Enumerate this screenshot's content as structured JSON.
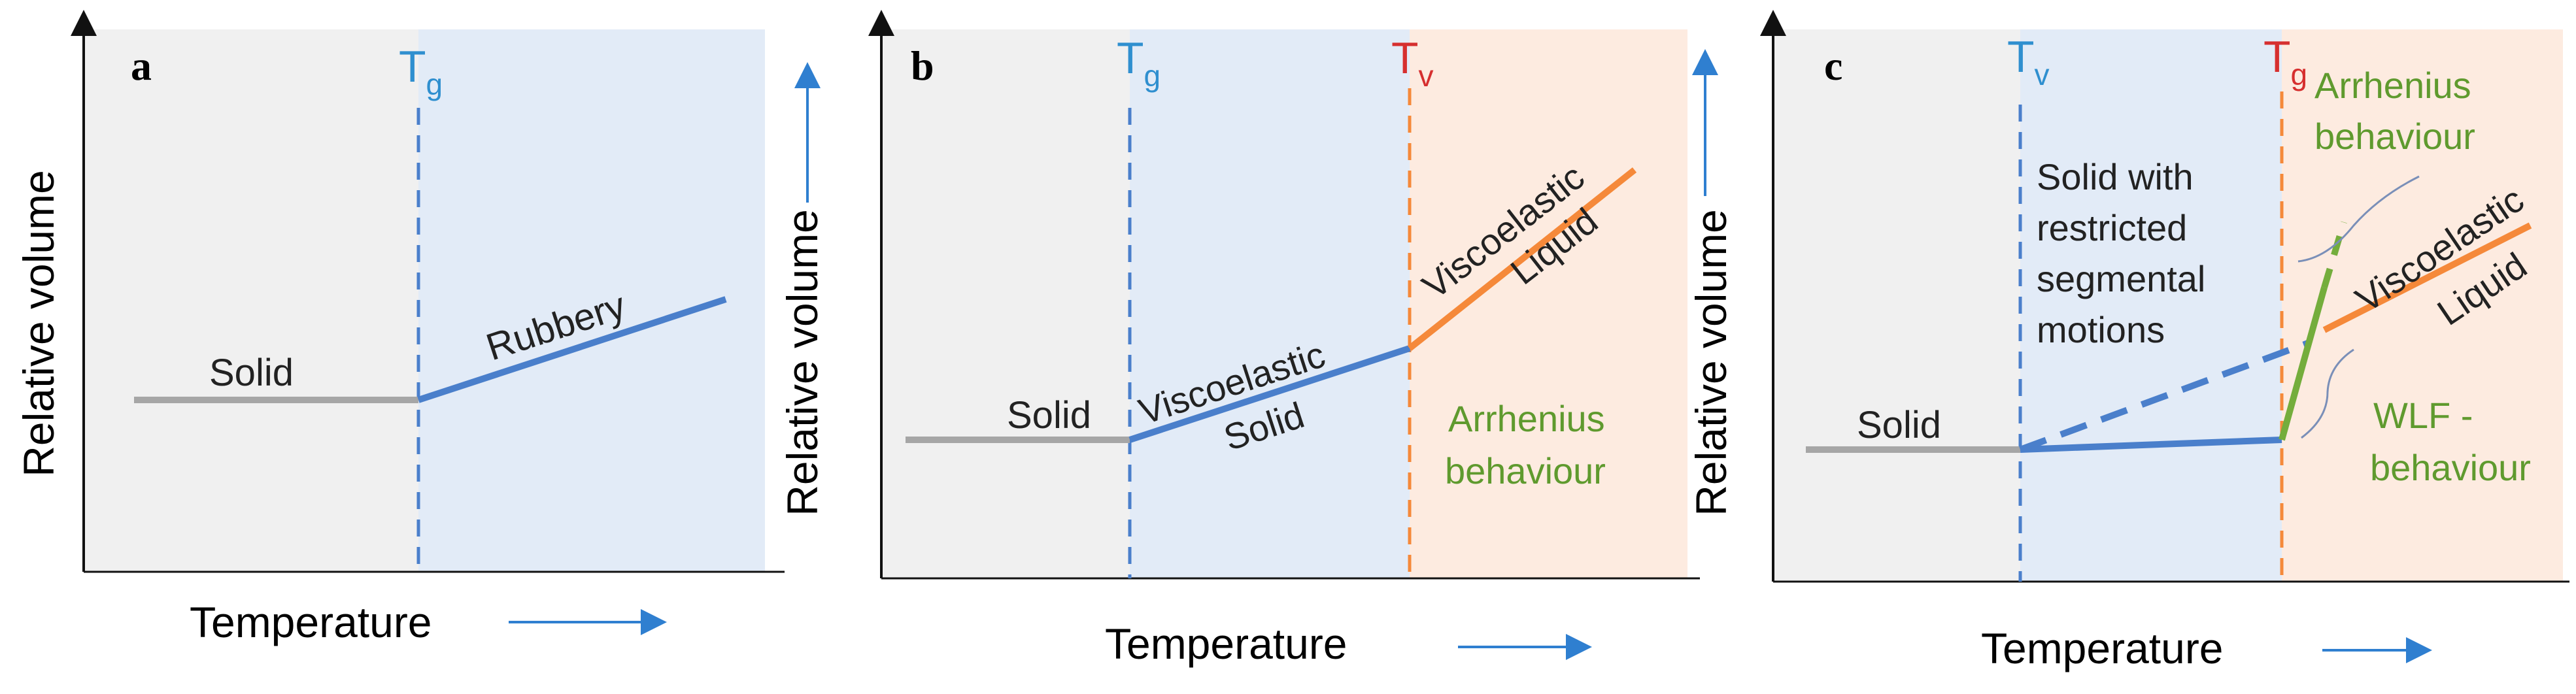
{
  "panels": [
    {
      "letter": "a",
      "ylabel": "Relative volume",
      "xlabel": "Temperature",
      "markers": [
        {
          "main": "T",
          "sub": "g",
          "color": "#2f8fcf"
        }
      ],
      "curve_labels": [
        "Solid",
        "Rubbery"
      ]
    },
    {
      "letter": "b",
      "ylabel": "Relative volume",
      "xlabel": "Temperature",
      "markers": [
        {
          "main": "T",
          "sub": "g",
          "color": "#2f8fcf"
        },
        {
          "main": "T",
          "sub": "v",
          "color": "#d62f2f"
        }
      ],
      "curve_labels": [
        "Solid",
        "Viscoelastic",
        "Solid",
        "Viscoelastic",
        "Liquid"
      ],
      "region_labels": [
        "Arrhenius",
        "behaviour"
      ]
    },
    {
      "letter": "c",
      "ylabel": "Relative volume",
      "xlabel": "Temperature",
      "markers": [
        {
          "main": "T",
          "sub": "v",
          "color": "#2f8fcf"
        },
        {
          "main": "T",
          "sub": "g",
          "color": "#d62f2f"
        }
      ],
      "curve_labels": [
        "Solid",
        "Viscoelastic",
        "Liquid"
      ],
      "region_labels": [
        "Solid with",
        "restricted",
        "segmental",
        "motions"
      ],
      "behaviour_labels": [
        "Arrhenius",
        "behaviour",
        "WLF -",
        "behaviour"
      ]
    }
  ],
  "colors": {
    "solid_region": "#f0f0f0",
    "glass_region": "#e2ebf7",
    "liquid_region": "#fdebe0",
    "solid_line": "#a6a6a6",
    "blue_line": "#4a7fcb",
    "orange_line": "#f5893a",
    "green_line": "#74ad3c",
    "green_text": "#5f9a2e",
    "axis": "#111111"
  }
}
